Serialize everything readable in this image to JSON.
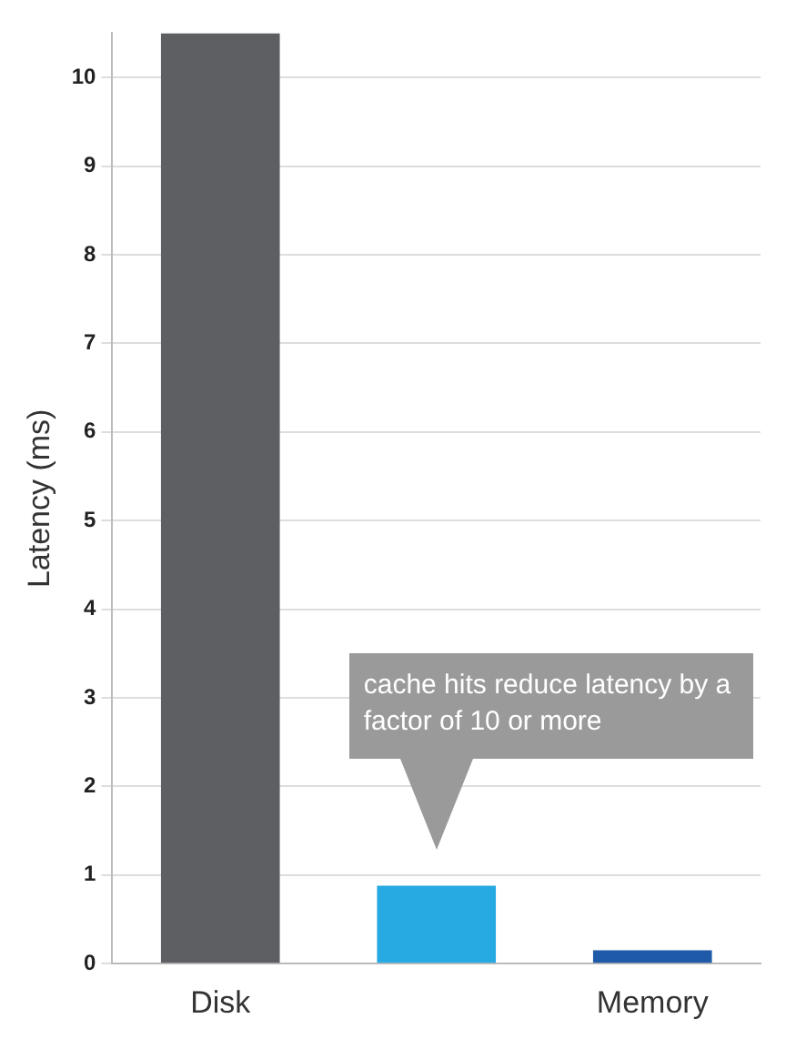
{
  "chart_data": {
    "type": "bar",
    "ylabel": "Latency (ms)",
    "categories": [
      "Disk",
      null,
      "Memory"
    ],
    "values": [
      10.5,
      0.88,
      0.15
    ],
    "colors": [
      "#5e5f62",
      "#27aae1",
      "#1e5aa8"
    ],
    "ylim": [
      0,
      10.5
    ],
    "yticks": [
      0,
      1,
      2,
      3,
      4,
      5,
      6,
      7,
      8,
      9,
      10
    ],
    "grid": "y",
    "legend": false,
    "annotations": [
      "cache hits reduce latency by a factor of 10 or more"
    ]
  }
}
